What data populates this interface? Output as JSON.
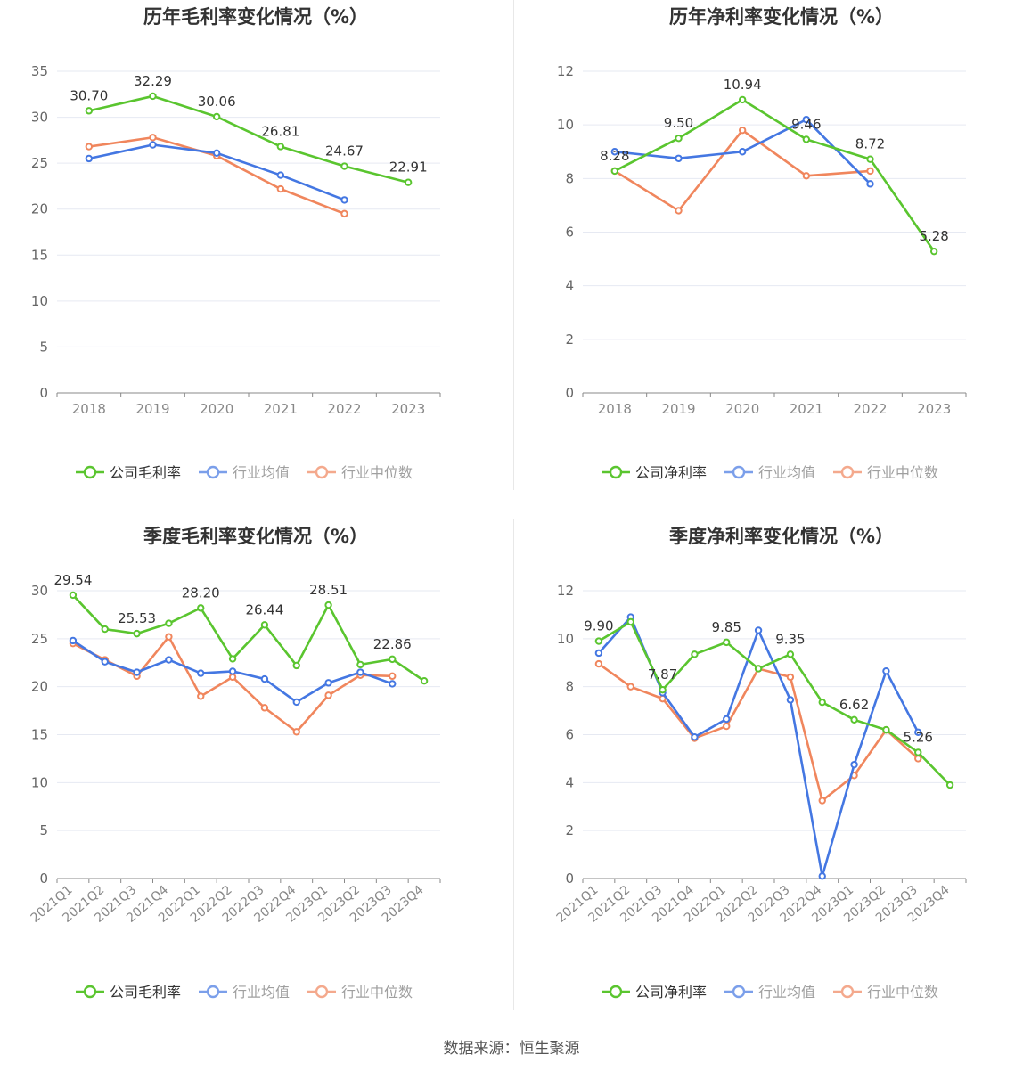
{
  "colors": {
    "company": "#5ac52f",
    "avg": "#4477e2",
    "median": "#f0865d",
    "grid": "#e6e9f2",
    "axis": "#888888",
    "text": "#333333"
  },
  "legend": {
    "company_gross": "公司毛利率",
    "company_net": "公司净利率",
    "avg": "行业均值",
    "median": "行业中位数"
  },
  "source": "数据来源：恒生聚源",
  "chart_data": [
    {
      "type": "line",
      "title": "历年毛利率变化情况（%）",
      "categories": [
        "2018",
        "2019",
        "2020",
        "2021",
        "2022",
        "2023"
      ],
      "ylim": [
        0,
        35
      ],
      "yticks": [
        0,
        5,
        10,
        15,
        20,
        25,
        30,
        35
      ],
      "grid": true,
      "legend_position": "bottom",
      "series": [
        {
          "name": "公司毛利率",
          "key": "company",
          "values": [
            30.7,
            32.29,
            30.06,
            26.81,
            24.67,
            22.91
          ],
          "labels": [
            "30.70",
            "32.29",
            "30.06",
            "26.81",
            "24.67",
            "22.91"
          ]
        },
        {
          "name": "行业均值",
          "key": "avg",
          "values": [
            25.5,
            27.0,
            26.1,
            23.7,
            21.0,
            null
          ]
        },
        {
          "name": "行业中位数",
          "key": "median",
          "values": [
            26.8,
            27.8,
            25.8,
            22.2,
            19.5,
            null
          ]
        }
      ]
    },
    {
      "type": "line",
      "title": "历年净利率变化情况（%）",
      "categories": [
        "2018",
        "2019",
        "2020",
        "2021",
        "2022",
        "2023"
      ],
      "ylim": [
        0,
        12
      ],
      "yticks": [
        0,
        2,
        4,
        6,
        8,
        10,
        12
      ],
      "grid": true,
      "legend_position": "bottom",
      "series": [
        {
          "name": "公司净利率",
          "key": "company",
          "values": [
            8.28,
            9.5,
            10.94,
            9.46,
            8.72,
            5.28
          ],
          "labels": [
            "8.28",
            "9.50",
            "10.94",
            "9.46",
            "8.72",
            "5.28"
          ]
        },
        {
          "name": "行业均值",
          "key": "avg",
          "values": [
            9.0,
            8.75,
            9.0,
            10.2,
            7.8,
            null
          ]
        },
        {
          "name": "行业中位数",
          "key": "median",
          "values": [
            8.28,
            6.8,
            9.8,
            8.1,
            8.28,
            null
          ]
        }
      ]
    },
    {
      "type": "line",
      "title": "季度毛利率变化情况（%）",
      "categories": [
        "2021Q1",
        "2021Q2",
        "2021Q3",
        "2021Q4",
        "2022Q1",
        "2022Q2",
        "2022Q3",
        "2022Q4",
        "2023Q1",
        "2023Q2",
        "2023Q3",
        "2023Q4"
      ],
      "ylim": [
        0,
        30
      ],
      "yticks": [
        0,
        5,
        10,
        15,
        20,
        25,
        30
      ],
      "grid": true,
      "legend_position": "bottom",
      "series": [
        {
          "name": "公司毛利率",
          "key": "company",
          "values": [
            29.54,
            26.0,
            25.53,
            26.6,
            28.2,
            22.9,
            26.44,
            22.2,
            28.51,
            22.3,
            22.86,
            20.6
          ],
          "labels": [
            "29.54",
            "",
            "25.53",
            "",
            "28.20",
            "",
            "26.44",
            "",
            "28.51",
            "",
            "22.86",
            ""
          ]
        },
        {
          "name": "行业均值",
          "key": "avg",
          "values": [
            24.8,
            22.6,
            21.5,
            22.8,
            21.4,
            21.6,
            20.8,
            18.4,
            20.4,
            21.5,
            20.3,
            null
          ]
        },
        {
          "name": "行业中位数",
          "key": "median",
          "values": [
            24.5,
            22.8,
            21.1,
            25.2,
            19.0,
            21.0,
            17.8,
            15.3,
            19.1,
            21.2,
            21.1,
            null
          ]
        }
      ]
    },
    {
      "type": "line",
      "title": "季度净利率变化情况（%）",
      "categories": [
        "2021Q1",
        "2021Q2",
        "2021Q3",
        "2021Q4",
        "2022Q1",
        "2022Q2",
        "2022Q3",
        "2022Q4",
        "2023Q1",
        "2023Q2",
        "2023Q3",
        "2023Q4"
      ],
      "ylim": [
        0,
        12
      ],
      "yticks": [
        0,
        2,
        4,
        6,
        8,
        10,
        12
      ],
      "grid": true,
      "legend_position": "bottom",
      "series": [
        {
          "name": "公司净利率",
          "key": "company",
          "values": [
            9.9,
            10.7,
            7.87,
            9.35,
            9.85,
            8.75,
            9.35,
            7.35,
            6.62,
            6.2,
            5.26,
            3.9
          ],
          "labels": [
            "9.90",
            "",
            "7.87",
            "",
            "9.85",
            "",
            "9.35",
            "",
            "6.62",
            "",
            "5.26",
            ""
          ]
        },
        {
          "name": "行业均值",
          "key": "avg",
          "values": [
            9.4,
            10.9,
            7.75,
            5.9,
            6.65,
            10.35,
            7.45,
            0.1,
            4.75,
            8.65,
            6.1,
            null
          ]
        },
        {
          "name": "行业中位数",
          "key": "median",
          "values": [
            8.95,
            8.0,
            7.5,
            5.85,
            6.35,
            8.75,
            8.4,
            3.25,
            4.3,
            6.2,
            5.0,
            null
          ]
        }
      ]
    }
  ]
}
